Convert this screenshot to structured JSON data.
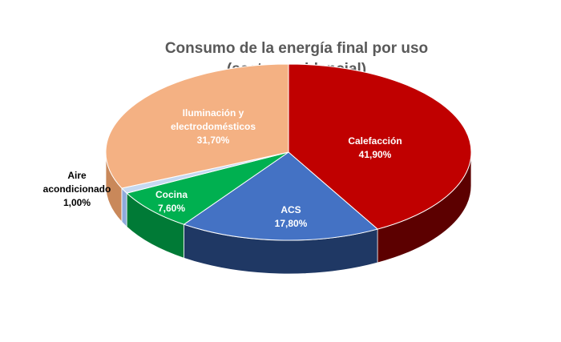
{
  "chart_data": {
    "type": "pie",
    "title_line1": "Consumo de la energía final por uso",
    "title_line2": "(sector residencial)",
    "slices": [
      {
        "key": "calefaccion",
        "label": "Calefacción",
        "value_text": "41,90%",
        "value": 41.9,
        "color": "#c00000",
        "side_color": "#5c0000",
        "label_color": "#ffffff"
      },
      {
        "key": "acs",
        "label": "ACS",
        "value_text": "17,80%",
        "value": 17.8,
        "color": "#4472c4",
        "side_color": "#1f3864",
        "label_color": "#ffffff"
      },
      {
        "key": "cocina",
        "label": "Cocina",
        "value_text": "7,60%",
        "value": 7.6,
        "color": "#00b050",
        "side_color": "#007a36",
        "label_color": "#ffffff"
      },
      {
        "key": "aire",
        "label": "Aire acondicionado",
        "label_lines": [
          "Aire",
          "acondicionado"
        ],
        "value_text": "1,00%",
        "value": 1.0,
        "color": "#c5d9f1",
        "side_color": "#8eaadb",
        "label_color": "#000000"
      },
      {
        "key": "iluminacion",
        "label": "Iluminación y electrodomésticos",
        "label_lines": [
          "Iluminación y",
          "electrodomésticos"
        ],
        "value_text": "31,70%",
        "value": 31.7,
        "color": "#f4b183",
        "side_color": "#c9885a",
        "label_color": "#ffffff"
      }
    ]
  }
}
